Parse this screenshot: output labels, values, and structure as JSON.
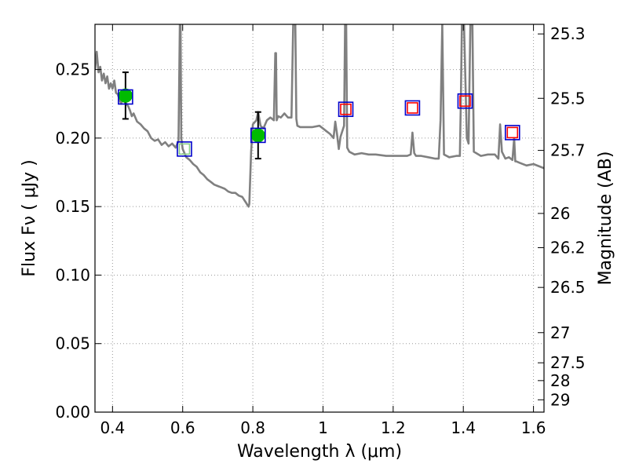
{
  "chart_data": {
    "type": "scatter",
    "xlabel": "Wavelength  λ (μm)",
    "ylabel": "Flux  Fν  ( μJy )",
    "ylabel_right": "Magnitude (AB)",
    "xlim": [
      0.35,
      1.63
    ],
    "ylim": [
      0.0,
      0.283
    ],
    "grid": true,
    "x_ticks": [
      0.4,
      0.6,
      0.8,
      1.0,
      1.2,
      1.4,
      1.6
    ],
    "x_tick_labels": [
      "0.4",
      "0.6",
      "0.8",
      "1",
      "1.2",
      "1.4",
      "1.6"
    ],
    "y_ticks": [
      0.0,
      0.05,
      0.1,
      0.15,
      0.2,
      0.25
    ],
    "y_tick_labels": [
      "0.00",
      "0.05",
      "0.10",
      "0.15",
      "0.20",
      "0.25"
    ],
    "right_ticks": [
      {
        "label": "25.3",
        "flux": 0.276
      },
      {
        "label": "25.5",
        "flux": 0.229
      },
      {
        "label": "25.7",
        "flux": 0.191
      },
      {
        "label": "26",
        "flux": 0.145
      },
      {
        "label": "26.2",
        "flux": 0.12
      },
      {
        "label": "26.5",
        "flux": 0.091
      },
      {
        "label": "27",
        "flux": 0.058
      },
      {
        "label": "27.5",
        "flux": 0.036
      },
      {
        "label": "28",
        "flux": 0.023
      },
      {
        "label": "29",
        "flux": 0.009
      }
    ],
    "colors": {
      "spectrum": "#808080",
      "observed_fill": "#00bb00",
      "model_box": "#0000cc",
      "nondetection_box": "#ff0000",
      "errorbar": "#000000",
      "grid": "#999999"
    },
    "series": [
      {
        "role": "model_spectrum",
        "x": [
          0.35,
          0.355,
          0.36,
          0.365,
          0.37,
          0.375,
          0.38,
          0.385,
          0.39,
          0.395,
          0.4,
          0.405,
          0.41,
          0.415,
          0.42,
          0.425,
          0.43,
          0.435,
          0.44,
          0.445,
          0.45,
          0.455,
          0.46,
          0.47,
          0.48,
          0.49,
          0.5,
          0.51,
          0.52,
          0.53,
          0.54,
          0.55,
          0.56,
          0.57,
          0.58,
          0.588,
          0.592,
          0.594,
          0.596,
          0.6,
          0.61,
          0.62,
          0.63,
          0.64,
          0.65,
          0.66,
          0.67,
          0.68,
          0.69,
          0.7,
          0.71,
          0.72,
          0.73,
          0.74,
          0.75,
          0.76,
          0.77,
          0.775,
          0.78,
          0.785,
          0.788,
          0.79,
          0.795,
          0.8,
          0.81,
          0.815,
          0.818,
          0.822,
          0.83,
          0.84,
          0.85,
          0.86,
          0.864,
          0.866,
          0.868,
          0.872,
          0.88,
          0.89,
          0.9,
          0.91,
          0.915,
          0.918,
          0.921,
          0.924,
          0.927,
          0.935,
          0.95,
          0.97,
          0.99,
          1.0,
          1.01,
          1.02,
          1.03,
          1.035,
          1.04,
          1.045,
          1.05,
          1.06,
          1.063,
          1.066,
          1.069,
          1.075,
          1.09,
          1.11,
          1.13,
          1.15,
          1.18,
          1.21,
          1.24,
          1.25,
          1.255,
          1.26,
          1.265,
          1.28,
          1.3,
          1.32,
          1.33,
          1.335,
          1.34,
          1.345,
          1.36,
          1.38,
          1.39,
          1.393,
          1.396,
          1.399,
          1.402,
          1.41,
          1.415,
          1.42,
          1.423,
          1.426,
          1.43,
          1.45,
          1.47,
          1.49,
          1.5,
          1.505,
          1.51,
          1.52,
          1.53,
          1.54,
          1.545,
          1.548,
          1.551,
          1.56,
          1.58,
          1.6,
          1.63
        ],
        "y": [
          0.25,
          0.263,
          0.248,
          0.252,
          0.242,
          0.247,
          0.24,
          0.245,
          0.236,
          0.24,
          0.236,
          0.242,
          0.233,
          0.232,
          0.228,
          0.225,
          0.23,
          0.226,
          0.225,
          0.223,
          0.22,
          0.216,
          0.218,
          0.212,
          0.21,
          0.207,
          0.205,
          0.2,
          0.198,
          0.199,
          0.195,
          0.197,
          0.194,
          0.196,
          0.193,
          0.198,
          0.283,
          0.283,
          0.2,
          0.192,
          0.186,
          0.184,
          0.181,
          0.179,
          0.175,
          0.173,
          0.17,
          0.168,
          0.166,
          0.165,
          0.164,
          0.163,
          0.161,
          0.16,
          0.16,
          0.158,
          0.157,
          0.155,
          0.153,
          0.151,
          0.15,
          0.152,
          0.19,
          0.21,
          0.213,
          0.219,
          0.215,
          0.209,
          0.207,
          0.213,
          0.215,
          0.213,
          0.262,
          0.262,
          0.213,
          0.216,
          0.215,
          0.218,
          0.215,
          0.215,
          0.283,
          0.283,
          0.283,
          0.214,
          0.209,
          0.208,
          0.208,
          0.208,
          0.209,
          0.207,
          0.205,
          0.203,
          0.2,
          0.212,
          0.203,
          0.192,
          0.201,
          0.209,
          0.283,
          0.283,
          0.193,
          0.19,
          0.188,
          0.189,
          0.188,
          0.188,
          0.187,
          0.187,
          0.187,
          0.188,
          0.204,
          0.189,
          0.187,
          0.187,
          0.186,
          0.185,
          0.185,
          0.213,
          0.283,
          0.188,
          0.186,
          0.187,
          0.187,
          0.228,
          0.283,
          0.283,
          0.283,
          0.2,
          0.196,
          0.283,
          0.283,
          0.283,
          0.19,
          0.187,
          0.188,
          0.188,
          0.185,
          0.21,
          0.19,
          0.185,
          0.186,
          0.184,
          0.2,
          0.183,
          0.183,
          0.182,
          0.18,
          0.181,
          0.178
        ]
      },
      {
        "role": "model_photometry_boxes",
        "x": [
          0.437,
          0.605,
          0.815,
          1.065,
          1.255,
          1.405,
          1.54
        ],
        "y": [
          0.23,
          0.192,
          0.202,
          0.221,
          0.222,
          0.227,
          0.204
        ]
      },
      {
        "role": "observed_detections",
        "x": [
          0.437,
          0.815
        ],
        "y": [
          0.231,
          0.202
        ],
        "yerr": [
          0.017,
          0.017
        ]
      },
      {
        "role": "nondetection_markers",
        "x": [
          0.605,
          1.065,
          1.255,
          1.405,
          1.54
        ],
        "y": [
          0.192,
          0.221,
          0.222,
          0.227,
          0.204
        ]
      }
    ]
  }
}
